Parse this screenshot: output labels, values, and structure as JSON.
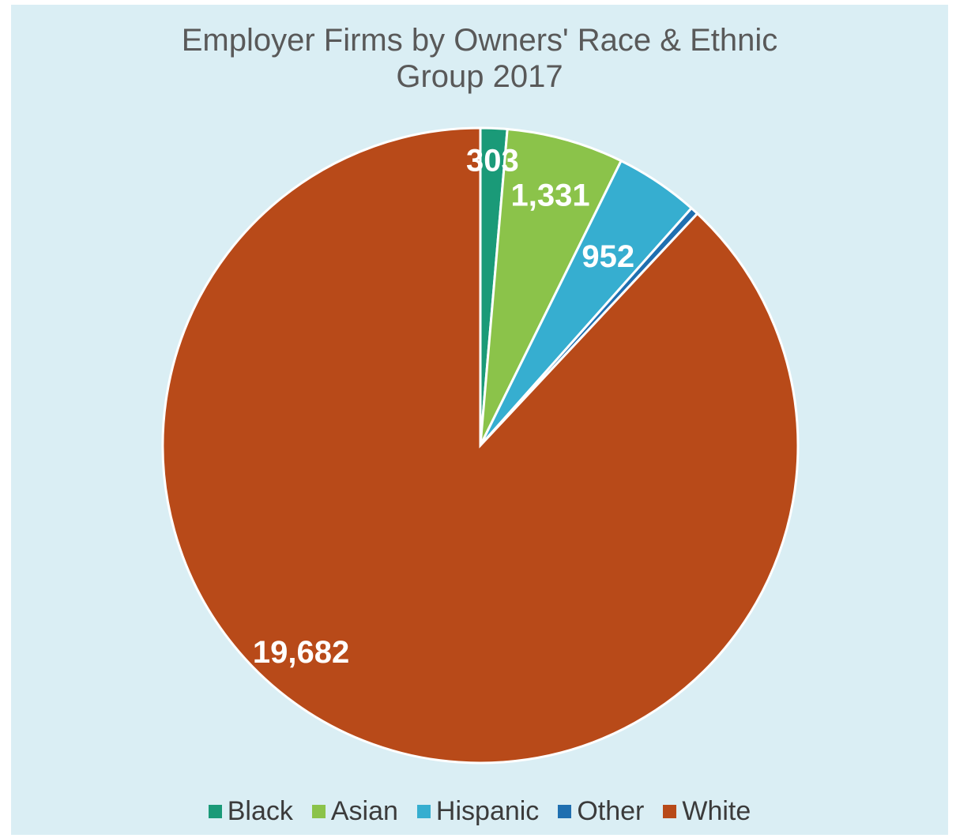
{
  "chart_data": {
    "type": "pie",
    "title": [
      "Employer Firms by Owners' Race & Ethnic",
      "Group 2017"
    ],
    "categories": [
      "Black",
      "Asian",
      "Hispanic",
      "Other",
      "White"
    ],
    "values": [
      303,
      1331,
      952,
      90,
      19682
    ],
    "data_labels": [
      "303",
      "1,331",
      "952",
      "",
      "19,682"
    ],
    "colors": [
      "#1a9a78",
      "#8bc34a",
      "#36aed0",
      "#1f6fb0",
      "#b84a19"
    ],
    "legend": "bottom"
  }
}
